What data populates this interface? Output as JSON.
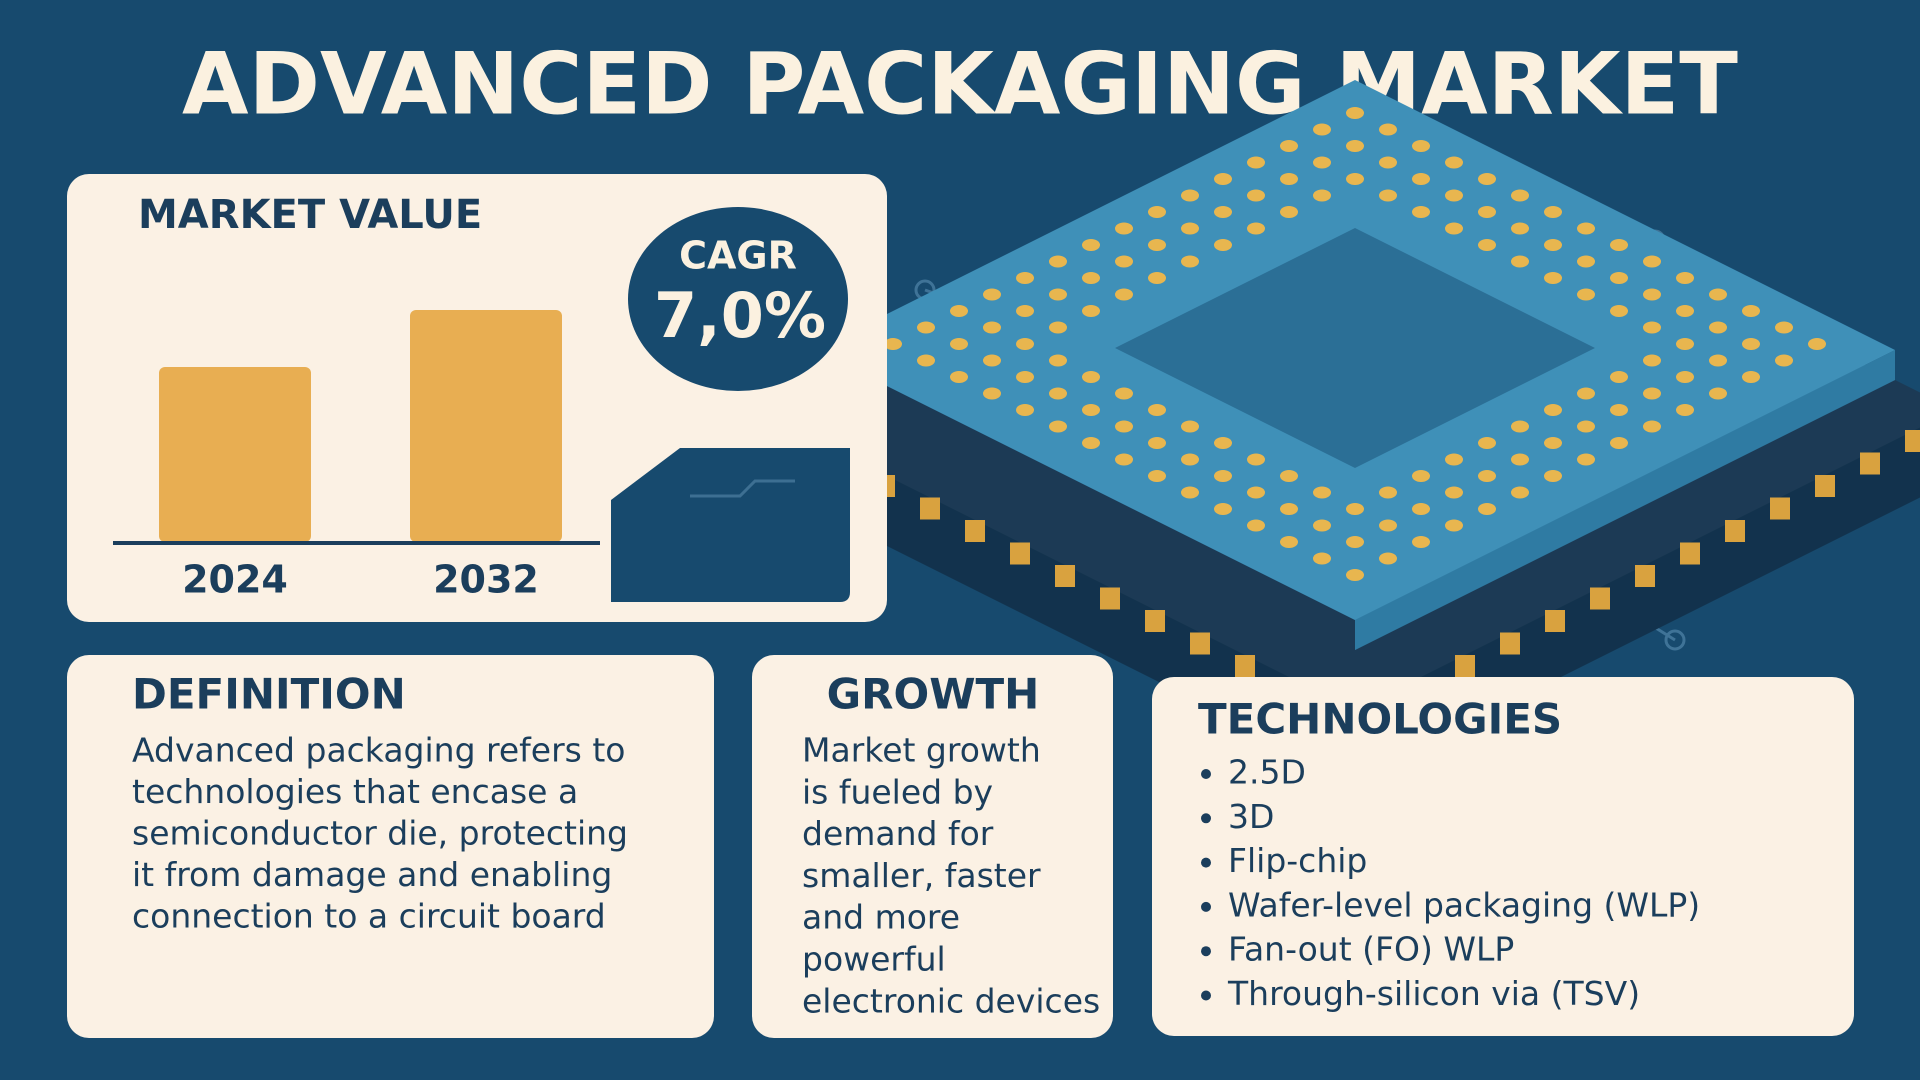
{
  "title": "ADVANCED PACKAGING MARKET",
  "market_value": {
    "heading": "MARKET VALUE",
    "years": [
      "2024",
      "2032"
    ],
    "cagr_label": "CAGR",
    "cagr_value": "7,0%"
  },
  "definition": {
    "heading": "DEFINITION",
    "lines": [
      "Advanced packaging refers to",
      "technologies that encase a",
      "semiconductor die, protecting",
      "it from damage and enabling",
      "connection to a circuit board"
    ]
  },
  "growth": {
    "heading": "GROWTH",
    "lines": [
      "Market growth",
      "is fueled by",
      "demand for",
      "smaller, faster",
      "and more",
      "powerful",
      "electronic devices"
    ]
  },
  "technologies": {
    "heading": "TECHNOLOGIES",
    "items": [
      "2.5D",
      "3D",
      "Flip-chip",
      "Wafer-level packaging (WLP)",
      "Fan-out (FO) WLP",
      "Through-silicon via (TSV)"
    ]
  }
}
